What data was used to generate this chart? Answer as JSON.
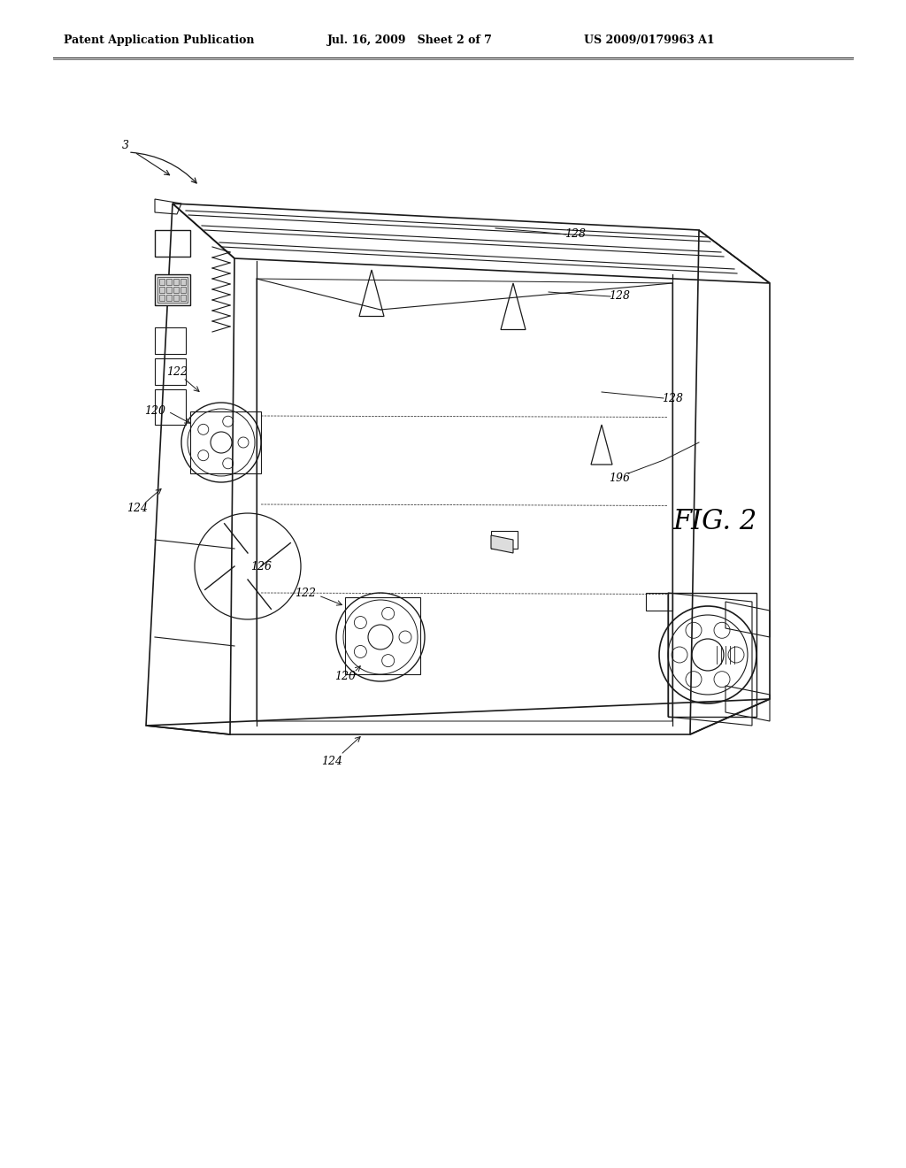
{
  "header_left": "Patent Application Publication",
  "header_mid": "Jul. 16, 2009   Sheet 2 of 7",
  "header_right": "US 2009/0179963 A1",
  "fig_label": "FIG. 2",
  "ref_num_3": "3",
  "ref_num_120_a": "120",
  "ref_num_120_b": "120",
  "ref_num_122_a": "122",
  "ref_num_122_b": "122",
  "ref_num_124_a": "124",
  "ref_num_124_b": "124",
  "ref_num_126": "126",
  "ref_num_128_a": "128",
  "ref_num_128_b": "128",
  "ref_num_128_c": "128",
  "ref_num_196": "196",
  "bg_color": "#ffffff",
  "line_color": "#1a1a1a",
  "text_color": "#000000",
  "header_fontsize": 9,
  "ref_fontsize": 9,
  "fig_fontsize": 18
}
